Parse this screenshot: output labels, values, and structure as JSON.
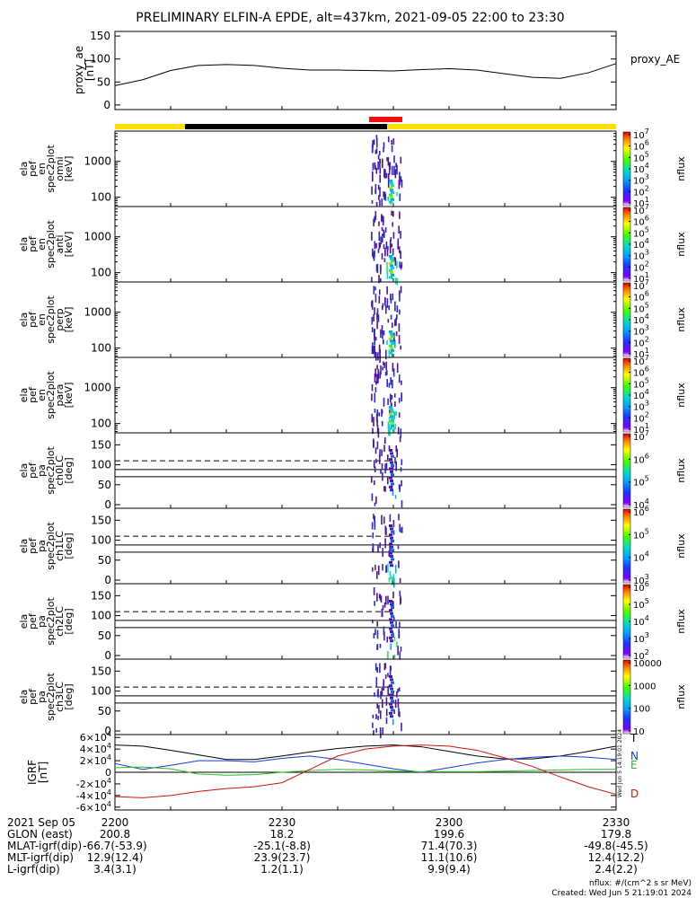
{
  "title": "PRELIMINARY ELFIN-A EPDE, alt=437km, 2021-09-05 22:00 to 23:30",
  "colors": {
    "yellow": "#ffe000",
    "black": "#000000",
    "red": "#ee1111"
  },
  "chart_data": [
    {
      "id": "proxy_ae",
      "type": "line",
      "ylabel": [
        "proxy_ae",
        "[nT]"
      ],
      "legend": "proxy_AE",
      "yticks": [
        "0",
        "50",
        "100",
        "150"
      ],
      "ylim": [
        -10,
        160
      ],
      "x_minutes": [
        0,
        5,
        10,
        15,
        20,
        25,
        30,
        35,
        40,
        45,
        50,
        55,
        60,
        65,
        70,
        75,
        80,
        85,
        90
      ],
      "values": [
        42,
        55,
        75,
        86,
        88,
        86,
        80,
        76,
        76,
        75,
        74,
        77,
        79,
        76,
        68,
        60,
        58,
        70,
        90
      ]
    },
    {
      "id": "omni",
      "type": "heatmap",
      "ylabel": [
        "ela",
        "pef",
        "en",
        "spec2plot",
        "omni",
        "[keV]"
      ],
      "yticks": [
        "100",
        "1000"
      ],
      "colorbar": {
        "labels": [
          "10^1",
          "10^2",
          "10^3",
          "10^4",
          "10^5",
          "10^6",
          "10^7"
        ],
        "title": "nflux"
      }
    },
    {
      "id": "anti",
      "type": "heatmap",
      "ylabel": [
        "ela",
        "pef",
        "en",
        "spec2plot",
        "anti",
        "[keV]"
      ],
      "yticks": [
        "100",
        "1000"
      ],
      "colorbar": {
        "labels": [
          "10^1",
          "10^2",
          "10^3",
          "10^4",
          "10^5",
          "10^6",
          "10^7"
        ],
        "title": "nflux"
      }
    },
    {
      "id": "perp",
      "type": "heatmap",
      "ylabel": [
        "ela",
        "pef",
        "en",
        "spec2plot",
        "perp",
        "[keV]"
      ],
      "yticks": [
        "100",
        "1000"
      ],
      "colorbar": {
        "labels": [
          "10^1",
          "10^2",
          "10^3",
          "10^4",
          "10^5",
          "10^6",
          "10^7"
        ],
        "title": "nflux"
      }
    },
    {
      "id": "para",
      "type": "heatmap",
      "ylabel": [
        "ela",
        "pef",
        "en",
        "spec2plot",
        "para",
        "[keV]"
      ],
      "yticks": [
        "100",
        "1000"
      ],
      "colorbar": {
        "labels": [
          "10^1",
          "10^2",
          "10^3",
          "10^4",
          "10^5",
          "10^6",
          "10^7"
        ],
        "title": "nflux"
      }
    },
    {
      "id": "ch0LC",
      "type": "heatmap",
      "ylabel": [
        "ela",
        "pef",
        "pa",
        "spec2plot",
        "ch0LC",
        "[deg]"
      ],
      "yticks": [
        "0",
        "50",
        "100",
        "150"
      ],
      "colorbar": {
        "labels": [
          "10^4",
          "10^5",
          "10^6",
          "10^7"
        ],
        "title": "nflux"
      }
    },
    {
      "id": "ch1LC",
      "type": "heatmap",
      "ylabel": [
        "ela",
        "pef",
        "pa",
        "spec2plot",
        "ch1LC",
        "[deg]"
      ],
      "yticks": [
        "0",
        "50",
        "100",
        "150"
      ],
      "colorbar": {
        "labels": [
          "10^3",
          "10^4",
          "10^5",
          "10^6"
        ],
        "title": "nflux"
      }
    },
    {
      "id": "ch2LC",
      "type": "heatmap",
      "ylabel": [
        "ela",
        "pef",
        "pa",
        "spec2plot",
        "ch2LC",
        "[deg]"
      ],
      "yticks": [
        "0",
        "50",
        "100",
        "150"
      ],
      "colorbar": {
        "labels": [
          "10^2",
          "10^3",
          "10^4",
          "10^5",
          "10^6"
        ],
        "title": "nflux"
      }
    },
    {
      "id": "ch3LC",
      "type": "heatmap",
      "ylabel": [
        "ela",
        "pef",
        "pa",
        "spec2plot",
        "ch3LC",
        "[deg]"
      ],
      "yticks": [
        "0",
        "50",
        "100",
        "150"
      ],
      "colorbar": {
        "labels": [
          "10",
          "100",
          "1000",
          "10000"
        ],
        "title": "nflux"
      }
    },
    {
      "id": "igrf",
      "type": "line",
      "ylabel": [
        "IGRF",
        "[nT]"
      ],
      "yticks": [
        "-6×10^4",
        "-4×10^4",
        "-2×10^4",
        "0",
        "2×10^4",
        "4×10^4",
        "6×10^4"
      ],
      "ylim": [
        -65000,
        65000
      ],
      "x_minutes": [
        0,
        5,
        10,
        15,
        20,
        25,
        30,
        35,
        40,
        45,
        50,
        55,
        60,
        65,
        70,
        75,
        80,
        85,
        90
      ],
      "series": [
        {
          "name": "T",
          "values": [
            47000,
            45000,
            38000,
            30000,
            22000,
            22000,
            28000,
            35000,
            41000,
            45000,
            47000,
            44000,
            36000,
            28000,
            23000,
            23000,
            28000,
            36000,
            45000
          ]
        },
        {
          "name": "N",
          "values": [
            15000,
            5000,
            12000,
            20000,
            20000,
            18000,
            24000,
            28000,
            22000,
            14000,
            6000,
            0,
            8000,
            16000,
            22000,
            26000,
            28000,
            26000,
            22000
          ]
        },
        {
          "name": "E",
          "values": [
            8000,
            9000,
            6000,
            -3000,
            -5000,
            -4000,
            0,
            3000,
            5000,
            4000,
            2000,
            1000,
            1000,
            1000,
            2000,
            3000,
            4000,
            5000,
            5000
          ]
        },
        {
          "name": "D",
          "values": [
            -42000,
            -44000,
            -40000,
            -33000,
            -28000,
            -25000,
            -18000,
            5000,
            28000,
            40000,
            45000,
            47000,
            45000,
            38000,
            25000,
            10000,
            -8000,
            -25000,
            -38000
          ]
        }
      ]
    }
  ],
  "time_axis": {
    "labels": [
      "2200",
      "2230",
      "2300",
      "2330"
    ],
    "rows": [
      {
        "label": "2021 Sep 05",
        "values": [
          "",
          "",
          "",
          ""
        ]
      },
      {
        "label": "GLON (east)",
        "values": [
          "200.8",
          "18.2",
          "199.6",
          "179.8"
        ]
      },
      {
        "label": "MLAT-igrf(dip)",
        "values": [
          "-66.7(-53.9)",
          "-25.1(-8.8)",
          "71.4(70.3)",
          "-49.8(-45.5)"
        ]
      },
      {
        "label": "MLT-igrf(dip)",
        "values": [
          "12.9(12.4)",
          "23.9(23.7)",
          "11.1(10.6)",
          "12.4(12.2)"
        ]
      },
      {
        "label": "L-igrf(dip)",
        "values": [
          "3.4(3.1)",
          "1.2(1.1)",
          "9.9(9.4)",
          "2.4(2.2)"
        ]
      }
    ]
  },
  "footer": {
    "units": "nflux: #/(cm^2 s sr MeV)",
    "created": "Created: Wed Jun  5 21:19:01 2024",
    "side_stamp": "Wed Jun  5 14:19:01 2024"
  }
}
